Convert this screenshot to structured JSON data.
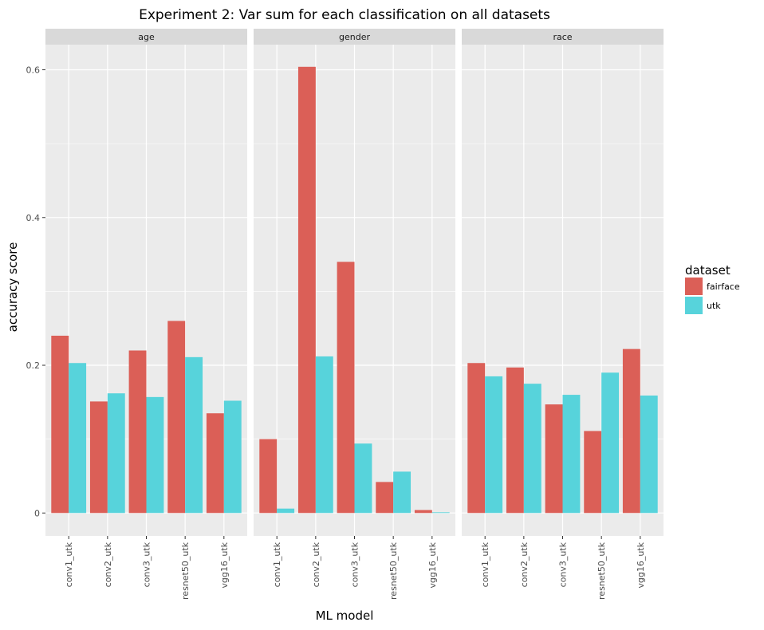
{
  "chart_data": {
    "type": "bar",
    "title": "Experiment 2: Var sum for each classification on all datasets",
    "xlabel": "ML model",
    "ylabel": "accuracy score",
    "ylim": [
      -0.031,
      0.634
    ],
    "yticks": [
      0,
      0.2,
      0.4,
      0.6
    ],
    "ytick_labels": [
      "0",
      "0.2",
      "0.4",
      "0.6"
    ],
    "grid": true,
    "categories": [
      "conv1_utk",
      "conv2_utk",
      "conv3_utk",
      "resnet50_utk",
      "vgg16_utk"
    ],
    "legend": {
      "title": "dataset",
      "placement": "right",
      "entries": [
        {
          "name": "fairface",
          "color": "#DB5F57"
        },
        {
          "name": "utk",
          "color": "#57D3DB"
        }
      ]
    },
    "facets": [
      {
        "label": "age",
        "series": [
          {
            "name": "fairface",
            "values": [
              0.24,
              0.151,
              0.22,
              0.26,
              0.135
            ]
          },
          {
            "name": "utk",
            "values": [
              0.203,
              0.162,
              0.157,
              0.211,
              0.152
            ]
          }
        ]
      },
      {
        "label": "gender",
        "series": [
          {
            "name": "fairface",
            "values": [
              0.1,
              0.604,
              0.34,
              0.042,
              0.004
            ]
          },
          {
            "name": "utk",
            "values": [
              0.006,
              0.212,
              0.094,
              0.056,
              0.001
            ]
          }
        ]
      },
      {
        "label": "race",
        "series": [
          {
            "name": "fairface",
            "values": [
              0.203,
              0.197,
              0.147,
              0.111,
              0.222
            ]
          },
          {
            "name": "utk",
            "values": [
              0.185,
              0.175,
              0.16,
              0.19,
              0.159
            ]
          }
        ]
      }
    ]
  },
  "colors": {
    "panel_background": "#EBEBEB",
    "strip_background": "#D9D9D9",
    "gridline": "#FFFFFF"
  }
}
